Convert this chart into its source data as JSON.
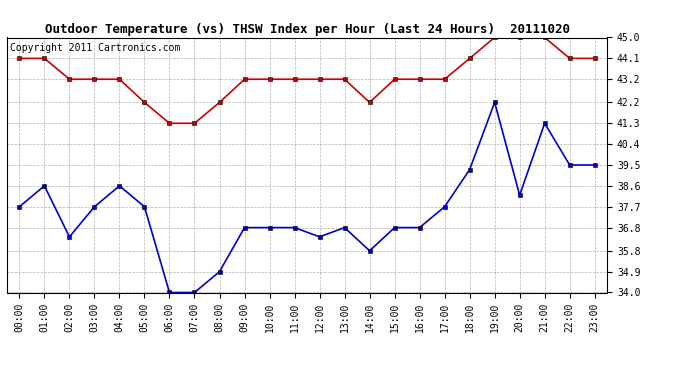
{
  "title": "Outdoor Temperature (vs) THSW Index per Hour (Last 24 Hours)  20111020",
  "copyright_text": "Copyright 2011 Cartronics.com",
  "hours": [
    "00:00",
    "01:00",
    "02:00",
    "03:00",
    "04:00",
    "05:00",
    "06:00",
    "07:00",
    "08:00",
    "09:00",
    "10:00",
    "11:00",
    "12:00",
    "13:00",
    "14:00",
    "15:00",
    "16:00",
    "17:00",
    "18:00",
    "19:00",
    "20:00",
    "21:00",
    "22:00",
    "23:00"
  ],
  "thsw": [
    44.1,
    44.1,
    43.2,
    43.2,
    43.2,
    42.2,
    41.3,
    41.3,
    42.2,
    43.2,
    43.2,
    43.2,
    43.2,
    43.2,
    42.2,
    43.2,
    43.2,
    43.2,
    44.1,
    45.0,
    45.0,
    45.0,
    44.1,
    44.1
  ],
  "outdoor_temp": [
    37.7,
    38.6,
    36.4,
    37.7,
    38.6,
    37.7,
    34.0,
    34.0,
    34.9,
    36.8,
    36.8,
    36.8,
    36.4,
    36.8,
    35.8,
    36.8,
    36.8,
    37.7,
    39.3,
    42.2,
    38.2,
    41.3,
    39.5,
    39.5
  ],
  "thsw_color": "#cc0000",
  "temp_color": "#0000cc",
  "bg_color": "#ffffff",
  "grid_color": "#aaaaaa",
  "ylim_min": 34.0,
  "ylim_max": 45.0,
  "yticks": [
    34.0,
    34.9,
    35.8,
    36.8,
    37.7,
    38.6,
    39.5,
    40.4,
    41.3,
    42.2,
    43.2,
    44.1,
    45.0
  ],
  "title_fontsize": 9,
  "copyright_fontsize": 7,
  "tick_fontsize": 7,
  "marker": "s",
  "markersize": 3,
  "linewidth": 1.2
}
